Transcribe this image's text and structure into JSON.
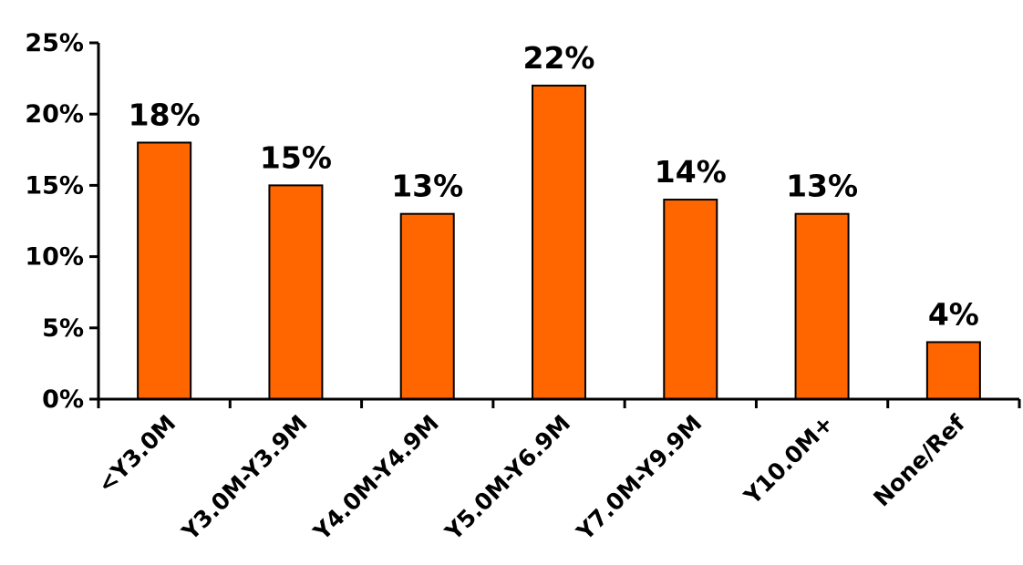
{
  "chart_data": {
    "type": "bar",
    "categories": [
      "<Y3.0M",
      "Y3.0M-Y3.9M",
      "Y4.0M-Y4.9M",
      "Y5.0M-Y6.9M",
      "Y7.0M-Y9.9M",
      "Y10.0M+",
      "None/Ref"
    ],
    "values": [
      18,
      15,
      13,
      22,
      14,
      13,
      4
    ],
    "data_labels": [
      "18%",
      "15%",
      "13%",
      "22%",
      "14%",
      "13%",
      "4%"
    ],
    "ylim": [
      0,
      25
    ],
    "yticks": [
      0,
      5,
      10,
      15,
      20,
      25
    ],
    "ytick_labels": [
      "0%",
      "5%",
      "10%",
      "15%",
      "20%",
      "25%"
    ],
    "title": "",
    "xlabel": "",
    "ylabel": "",
    "grid": false,
    "legend": "none",
    "colors": {
      "bar_fill": "#FF6600",
      "bar_stroke": "#000000",
      "axis": "#000000"
    }
  }
}
